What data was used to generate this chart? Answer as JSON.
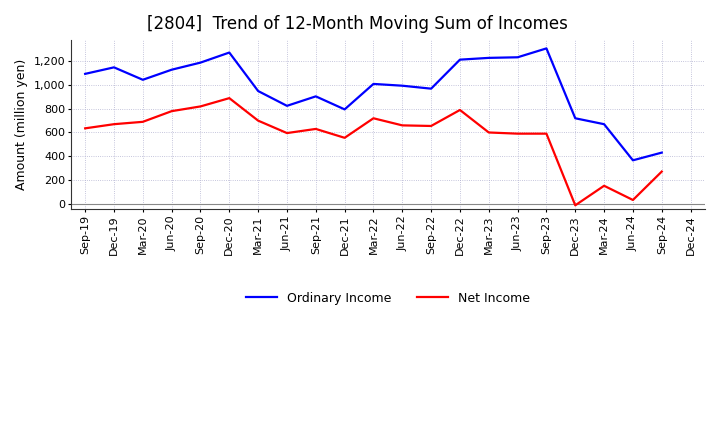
{
  "title": "[2804]  Trend of 12-Month Moving Sum of Incomes",
  "ylabel": "Amount (million yen)",
  "x_labels": [
    "Sep-19",
    "Dec-19",
    "Mar-20",
    "Jun-20",
    "Sep-20",
    "Dec-20",
    "Mar-21",
    "Jun-21",
    "Sep-21",
    "Dec-21",
    "Mar-22",
    "Jun-22",
    "Sep-22",
    "Dec-22",
    "Mar-23",
    "Jun-23",
    "Sep-23",
    "Dec-23",
    "Mar-24",
    "Jun-24",
    "Sep-24",
    "Dec-24"
  ],
  "ordinary_income": [
    1095,
    1150,
    1045,
    1130,
    1190,
    1275,
    950,
    825,
    905,
    795,
    1010,
    995,
    970,
    1215,
    1230,
    1235,
    1310,
    720,
    670,
    365,
    430,
    null
  ],
  "net_income": [
    635,
    670,
    690,
    780,
    820,
    890,
    700,
    595,
    630,
    555,
    720,
    660,
    655,
    790,
    600,
    590,
    590,
    -15,
    150,
    30,
    270,
    null
  ],
  "ylim": [
    -50,
    1380
  ],
  "yticks": [
    0,
    200,
    400,
    600,
    800,
    1000,
    1200
  ],
  "ordinary_color": "#0000FF",
  "net_color": "#FF0000",
  "background_color": "#FFFFFF",
  "grid_color": "#AAAACC",
  "title_fontsize": 12,
  "axis_label_fontsize": 9,
  "tick_fontsize": 8,
  "legend_labels": [
    "Ordinary Income",
    "Net Income"
  ]
}
